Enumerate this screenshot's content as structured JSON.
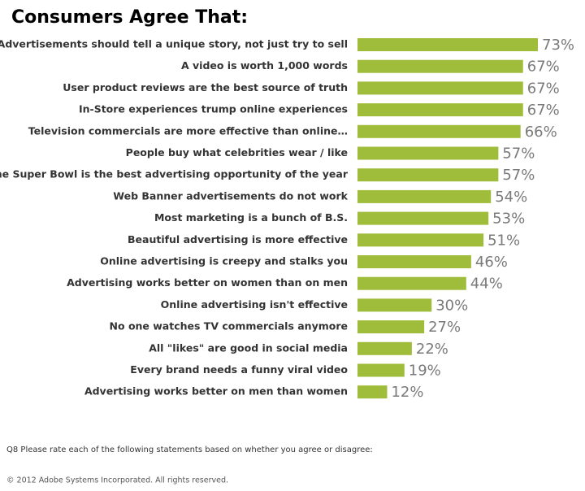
{
  "chart_data": {
    "type": "barh",
    "title": "Consumers Agree That:",
    "categories": [
      "Advertisements should tell a unique story, not just try to sell",
      "A video is worth 1,000 words",
      "User product reviews are the best source of truth",
      "In-Store experiences trump online experiences",
      "Television commercials are more effective than online…",
      "People buy what celebrities wear / like",
      "The Super Bowl is the best advertising opportunity of the year",
      "Web Banner advertisements do not work",
      "Most marketing is a bunch of B.S.",
      "Beautiful advertising is more effective",
      "Online advertising is creepy and stalks you",
      "Advertising works better on women than on men",
      "Online advertising isn't effective",
      "No one watches TV commercials anymore",
      "All \"likes\" are good in social media",
      "Every brand needs a funny viral video",
      "Advertising works better on men than women"
    ],
    "values": [
      73,
      67,
      67,
      67,
      66,
      57,
      57,
      54,
      53,
      51,
      46,
      44,
      30,
      27,
      22,
      19,
      12
    ],
    "value_labels": [
      "73%",
      "67%",
      "67%",
      "67%",
      "66%",
      "57%",
      "57%",
      "54%",
      "53%",
      "51%",
      "46%",
      "44%",
      "30%",
      "27%",
      "22%",
      "19%",
      "12%"
    ],
    "color": "#9fbd3a",
    "footnote": "Q8 Please rate each of the following statements based on whether you agree or disagree:",
    "copyright": "© 2012 Adobe Systems Incorporated. All rights reserved."
  }
}
